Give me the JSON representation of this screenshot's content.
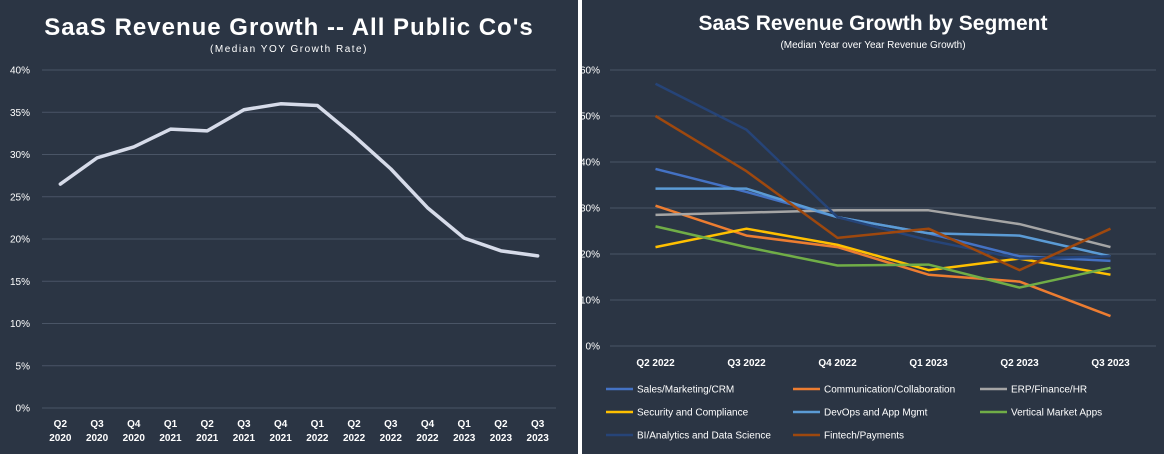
{
  "chart_data": [
    {
      "type": "line",
      "title": "SaaS Revenue Growth -- All Public Co's",
      "subtitle": "(Median YOY Growth Rate)",
      "categories": [
        [
          "Q2",
          "2020"
        ],
        [
          "Q3",
          "2020"
        ],
        [
          "Q4",
          "2020"
        ],
        [
          "Q1",
          "2021"
        ],
        [
          "Q2",
          "2021"
        ],
        [
          "Q3",
          "2021"
        ],
        [
          "Q4",
          "2021"
        ],
        [
          "Q1",
          "2022"
        ],
        [
          "Q2",
          "2022"
        ],
        [
          "Q3",
          "2022"
        ],
        [
          "Q4",
          "2022"
        ],
        [
          "Q1",
          "2023"
        ],
        [
          "Q2",
          "2023"
        ],
        [
          "Q3",
          "2023"
        ]
      ],
      "series": [
        {
          "values": [
            0.265,
            0.296,
            0.309,
            0.33,
            0.328,
            0.353,
            0.36,
            0.358,
            0.322,
            0.283,
            0.237,
            0.201,
            0.186,
            0.18
          ],
          "color": "#d6dbe9"
        }
      ],
      "yticks": [
        "0%",
        "5%",
        "10%",
        "15%",
        "20%",
        "25%",
        "30%",
        "35%",
        "40%"
      ],
      "ylim": [
        0,
        0.4
      ],
      "grid": true
    },
    {
      "type": "line",
      "title": "SaaS Revenue Growth by Segment",
      "subtitle": "(Median Year over Year Revenue Growth)",
      "categories": [
        "Q2 2022",
        "Q3 2022",
        "Q4 2022",
        "Q1 2023",
        "Q2 2023",
        "Q3 2023"
      ],
      "yticks": [
        "0%",
        "10%",
        "20%",
        "30%",
        "40%",
        "50%",
        "60%"
      ],
      "ylim": [
        0,
        0.6
      ],
      "grid": true,
      "legend": "bottom",
      "series": [
        {
          "name": "Sales/Marketing/CRM",
          "color": "#4472c4",
          "values": [
            0.385,
            0.335,
            0.28,
            0.245,
            0.195,
            0.185
          ]
        },
        {
          "name": "Communication/Collaboration",
          "color": "#ed7d31",
          "values": [
            0.305,
            0.24,
            0.215,
            0.155,
            0.14,
            0.065
          ]
        },
        {
          "name": "ERP/Finance/HR",
          "color": "#a5a5a5",
          "values": [
            0.285,
            0.29,
            0.295,
            0.295,
            0.265,
            0.215
          ]
        },
        {
          "name": "Security and Compliance",
          "color": "#ffc000",
          "values": [
            0.215,
            0.255,
            0.22,
            0.165,
            0.19,
            0.155
          ]
        },
        {
          "name": "DevOps and App Mgmt",
          "color": "#5b9bd5",
          "values": [
            0.342,
            0.342,
            0.28,
            0.245,
            0.24,
            0.195
          ]
        },
        {
          "name": "Vertical Market Apps",
          "color": "#70ad47",
          "values": [
            0.26,
            0.215,
            0.175,
            0.177,
            0.127,
            0.17
          ]
        },
        {
          "name": "BI/Analytics and Data Science",
          "color": "#264478",
          "values": [
            0.57,
            0.47,
            0.28,
            0.23,
            0.19,
            0.195
          ]
        },
        {
          "name": "Fintech/Payments",
          "color": "#9e480e",
          "values": [
            0.5,
            0.38,
            0.235,
            0.255,
            0.165,
            0.255
          ]
        }
      ]
    }
  ]
}
